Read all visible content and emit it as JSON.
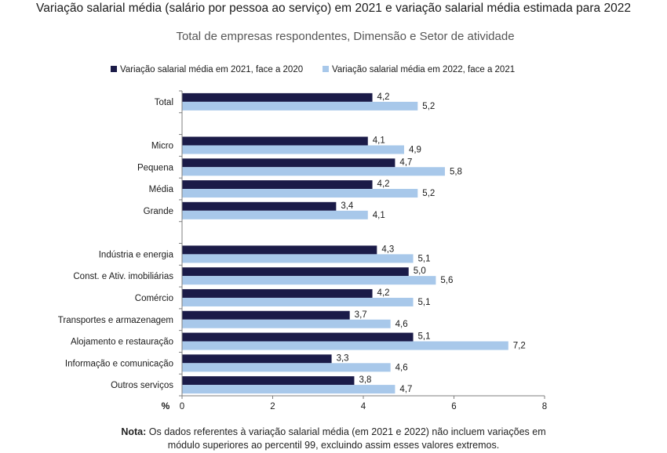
{
  "title": "Variação salarial média (salário por pessoa ao serviço) em 2021 e variação salarial média estimada para 2022",
  "subtitle": "Total de empresas respondentes, Dimensão e Setor de atividade",
  "note": {
    "label": "Nota:",
    "line1": "Os dados referentes à variação salarial média (em 2021 e 2022) não incluem variações em",
    "line2": "módulo superiores ao percentil 99, excluindo assim esses valores extremos."
  },
  "colors": {
    "series_2021": "#1b1b48",
    "series_2022": "#a8c8ea",
    "axis": "#7f7f7f"
  },
  "chart_data": {
    "type": "bar",
    "orientation": "horizontal",
    "categories": [
      "Total",
      "",
      "Micro",
      "Pequena",
      "Média",
      "Grande",
      "",
      "Indústria e energia",
      "Const. e Ativ. imobiliárias",
      "Comércio",
      "Transportes e armazenagem",
      "Alojamento e restauração",
      "Informação e comunicação",
      "Outros serviços"
    ],
    "series": [
      {
        "name": "Variação salarial média em 2021, face a 2020",
        "values": [
          4.2,
          null,
          4.1,
          4.7,
          4.2,
          3.4,
          null,
          4.3,
          5.0,
          4.2,
          3.7,
          5.1,
          3.3,
          3.8
        ]
      },
      {
        "name": "Variação salarial média em 2022, face a 2021",
        "values": [
          5.2,
          null,
          4.9,
          5.8,
          5.2,
          4.1,
          null,
          5.1,
          5.6,
          5.1,
          4.6,
          7.2,
          4.6,
          4.7
        ]
      }
    ],
    "value_labels_2021": [
      "4,2",
      "",
      "4,1",
      "4,7",
      "4,2",
      "3,4",
      "",
      "4,3",
      "5,0",
      "4,2",
      "3,7",
      "5,1",
      "3,3",
      "3,8"
    ],
    "value_labels_2022": [
      "5,2",
      "",
      "4,9",
      "5,8",
      "5,2",
      "4,1",
      "",
      "5,1",
      "5,6",
      "5,1",
      "4,6",
      "7,2",
      "4,6",
      "4,7"
    ],
    "xlim": [
      0,
      8
    ],
    "xticks": [
      "0",
      "2",
      "4",
      "6",
      "8"
    ],
    "xticks_values": [
      0,
      2,
      4,
      6,
      8
    ],
    "xlabel": "%",
    "legend": "top",
    "grid": false
  }
}
